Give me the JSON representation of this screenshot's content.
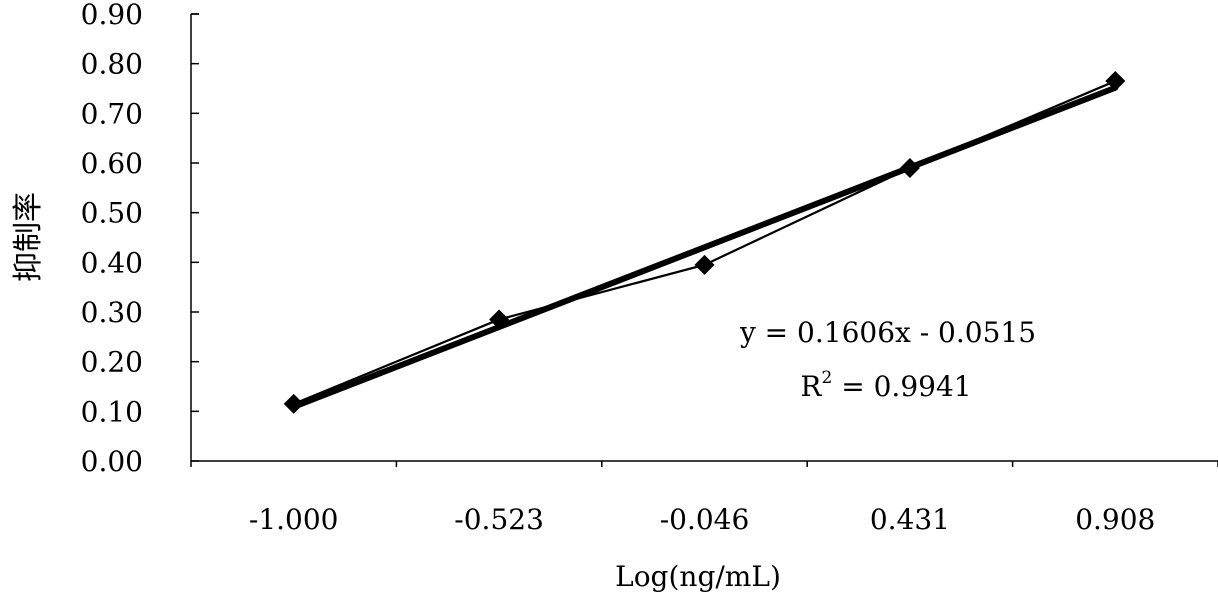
{
  "chart_data": {
    "type": "line",
    "categories": [
      "-1.000",
      "-0.523",
      "-0.046",
      "0.431",
      "0.908"
    ],
    "x": [
      -1.0,
      -0.523,
      -0.046,
      0.431,
      0.908
    ],
    "series": [
      {
        "values": [
          0.115,
          0.285,
          0.395,
          0.59,
          0.765
        ],
        "color": "#000000",
        "marker": "diamond"
      }
    ],
    "trendline": {
      "slope": 0.1606,
      "intercept": -0.0515,
      "color": "#000000"
    },
    "equation_text": "y = 0.1606x - 0.0515",
    "r2_prefix": "R",
    "r2_sup": "2",
    "r2_suffix": " = 0.9941",
    "xlabel": "Log(ng/mL)",
    "ylabel": "抑制率",
    "ylim": [
      0,
      0.9
    ],
    "yticks": [
      "0.00",
      "0.10",
      "0.20",
      "0.30",
      "0.40",
      "0.50",
      "0.60",
      "0.70",
      "0.80",
      "0.90"
    ],
    "grid": false,
    "legend": "none"
  }
}
